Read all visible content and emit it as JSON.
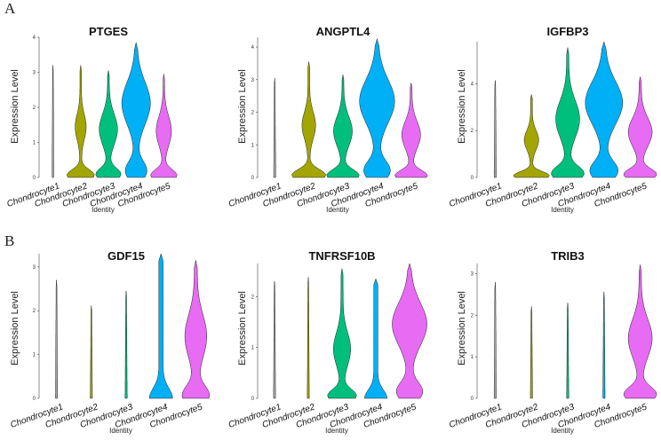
{
  "panel_labels": [
    "A",
    "B"
  ],
  "chart_data": [
    {
      "type": "violin",
      "title": "PTGES",
      "ylabel": "Expression Level",
      "xlabel": "Identity",
      "ylim": [
        0,
        4
      ],
      "ticks": [
        0,
        1,
        2,
        3,
        4
      ],
      "categories": [
        "Chondrocyte1",
        "Chondrocyte2",
        "Chondrocyte3",
        "Chondrocyte4",
        "Chondrocyte5"
      ],
      "colors": [
        "#a8a8a8",
        "#a3a500",
        "#00bf7d",
        "#00b0f6",
        "#e76bf3"
      ],
      "max": [
        3.2,
        3.2,
        3.05,
        3.85,
        2.95
      ],
      "profile": [
        "spike",
        "low",
        "mid",
        "high",
        "lowmid"
      ]
    },
    {
      "type": "violin",
      "title": "ANGPTL4",
      "ylabel": "Expression Level",
      "xlabel": "Identity",
      "ylim": [
        0,
        4.3
      ],
      "ticks": [
        0,
        1,
        2,
        3,
        4
      ],
      "categories": [
        "Chondrocyte1",
        "Chondrocyte2",
        "Chondrocyte3",
        "Chondrocyte4",
        "Chondrocyte5"
      ],
      "colors": [
        "#a8a8a8",
        "#a3a500",
        "#00bf7d",
        "#00b0f6",
        "#e76bf3"
      ],
      "max": [
        3.05,
        3.55,
        3.15,
        4.25,
        2.9
      ],
      "profile": [
        "spike",
        "low",
        "lowmid",
        "high",
        "lowmid"
      ]
    },
    {
      "type": "violin",
      "title": "IGFBP3",
      "ylabel": "Expression Level",
      "xlabel": "Identity",
      "ylim": [
        0,
        5.8
      ],
      "ticks": [
        0,
        2,
        4
      ],
      "categories": [
        "Chondrocyte1",
        "Chondrocyte2",
        "Chondrocyte3",
        "Chondrocyte4",
        "Chondrocyte5"
      ],
      "colors": [
        "#a8a8a8",
        "#a3a500",
        "#00bf7d",
        "#00b0f6",
        "#e76bf3"
      ],
      "max": [
        4.15,
        3.55,
        5.55,
        5.8,
        4.3
      ],
      "profile": [
        "spike",
        "low",
        "mid",
        "high",
        "mid"
      ]
    },
    {
      "type": "violin",
      "title": "GDF15",
      "ylabel": "Expression Level",
      "xlabel": "Identity",
      "ylim": [
        0,
        3.3
      ],
      "ticks": [
        0,
        1,
        2,
        3
      ],
      "categories": [
        "Chondrocyte1",
        "Chondrocyte2",
        "Chondrocyte3",
        "Chondrocyte4",
        "Chondrocyte5"
      ],
      "colors": [
        "#a8a8a8",
        "#a3a500",
        "#00bf7d",
        "#00b0f6",
        "#e76bf3"
      ],
      "max": [
        2.7,
        2.12,
        2.45,
        3.3,
        3.15
      ],
      "profile": [
        "spike",
        "spike",
        "spike",
        "base",
        "basewide"
      ]
    },
    {
      "type": "violin",
      "title": "TNFRSF10B",
      "ylabel": "Expression Level",
      "xlabel": "Identity",
      "ylim": [
        0,
        2.65
      ],
      "ticks": [
        0,
        1,
        2
      ],
      "categories": [
        "Chondrocyte1",
        "Chondrocyte2",
        "Chondrocyte3",
        "Chondrocyte4",
        "Chondrocyte5"
      ],
      "colors": [
        "#a8a8a8",
        "#a3a500",
        "#00bf7d",
        "#00b0f6",
        "#e76bf3"
      ],
      "max": [
        2.3,
        2.38,
        2.55,
        2.35,
        2.65
      ],
      "profile": [
        "spike",
        "spike",
        "basemid",
        "base",
        "high"
      ]
    },
    {
      "type": "violin",
      "title": "TRIB3",
      "ylabel": "Expression Level",
      "xlabel": "Identity",
      "ylim": [
        0,
        3.25
      ],
      "ticks": [
        0,
        1,
        2,
        3
      ],
      "categories": [
        "Chondrocyte1",
        "Chondrocyte2",
        "Chondrocyte3",
        "Chondrocyte4",
        "Chondrocyte5"
      ],
      "colors": [
        "#a8a8a8",
        "#a3a500",
        "#00bf7d",
        "#00b0f6",
        "#e76bf3"
      ],
      "max": [
        2.8,
        2.22,
        2.3,
        2.57,
        3.22
      ],
      "profile": [
        "spike",
        "spike",
        "spike",
        "spike",
        "mid"
      ]
    }
  ]
}
